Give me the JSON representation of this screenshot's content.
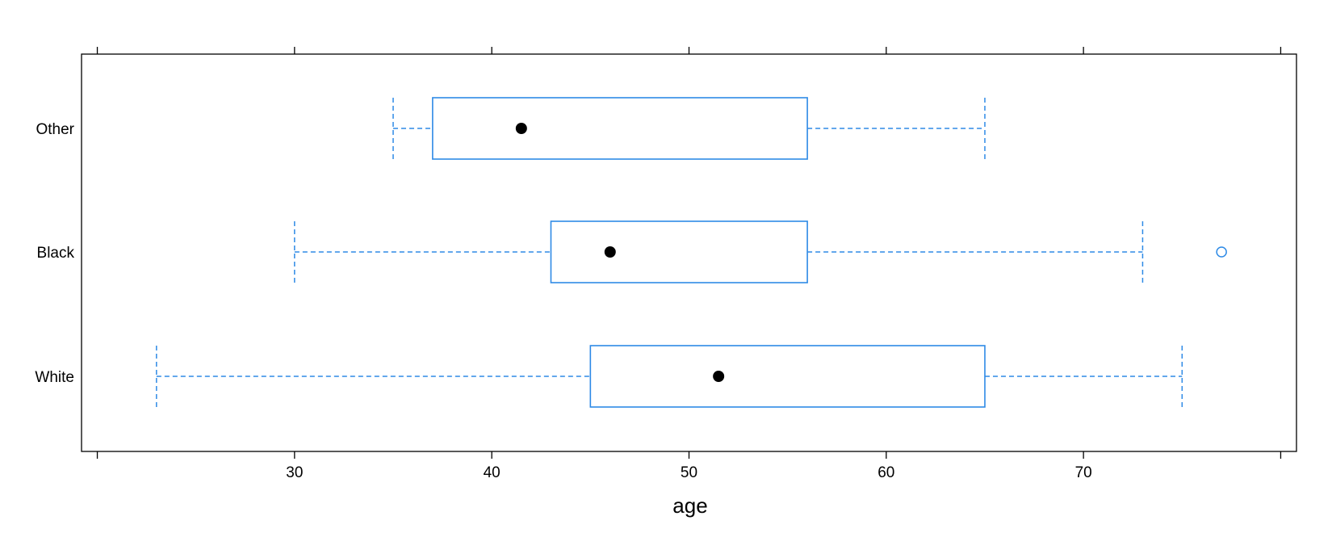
{
  "chart_data": {
    "type": "boxplot",
    "orientation": "horizontal",
    "xlabel": "age",
    "xlim": [
      19.2,
      80.8
    ],
    "xticks": [
      30,
      40,
      50,
      60,
      70
    ],
    "categories": [
      "White",
      "Black",
      "Other"
    ],
    "groups": [
      {
        "name": "White",
        "whisker_low": 23,
        "q1": 45,
        "median": 51.5,
        "q3": 65,
        "whisker_high": 75,
        "outliers": []
      },
      {
        "name": "Black",
        "whisker_low": 30,
        "q1": 43,
        "median": 46,
        "q3": 56,
        "whisker_high": 73,
        "outliers": [
          77
        ]
      },
      {
        "name": "Other",
        "whisker_low": 35,
        "q1": 37,
        "median": 41.5,
        "q3": 56,
        "whisker_high": 65,
        "outliers": []
      }
    ],
    "colors": {
      "box": "#2e8ae6",
      "median": "#000000",
      "frame": "#000000"
    },
    "grid": false
  }
}
